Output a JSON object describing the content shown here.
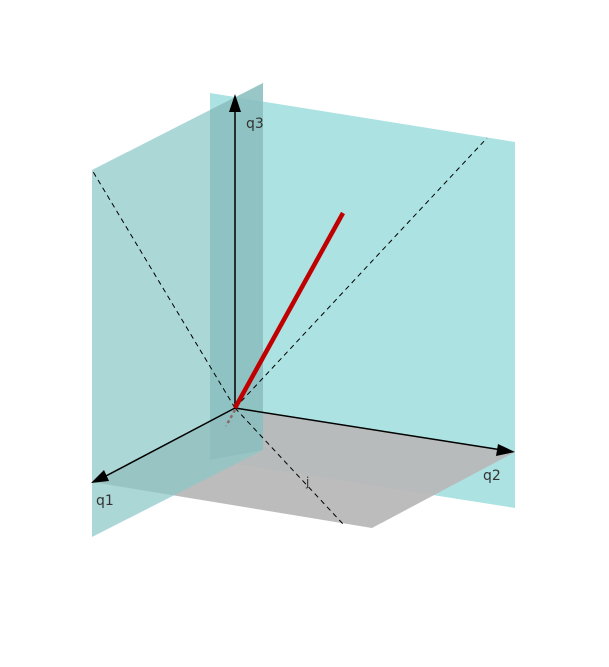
{
  "axes": {
    "q1_label": "q1",
    "q2_label": "q2",
    "q3_label": "q3"
  },
  "annotations": {
    "diagonal_label": "j"
  },
  "colors": {
    "plane_fill": "#9fdede",
    "floor_fill": "#b4b4b4",
    "axis_stroke": "#000000",
    "vector_stroke": "#c00000",
    "dashed_stroke": "#000000"
  }
}
